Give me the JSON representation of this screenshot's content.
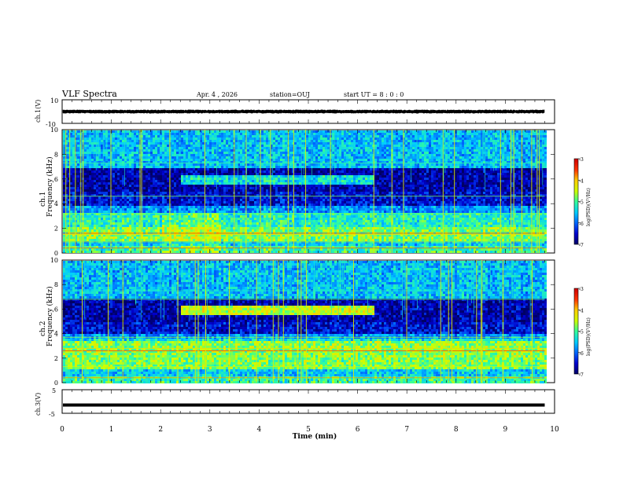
{
  "header": {
    "title": "VLF Spectra",
    "date": "Apr. 4 , 2026",
    "station": "station=OUJ",
    "start": "start UT =  8 : 0 : 0"
  },
  "colors": {
    "background": "#ffffff",
    "axis": "#000000",
    "colormap": [
      "#000066",
      "#0000cc",
      "#0066ff",
      "#00ccff",
      "#33ff99",
      "#ccff00",
      "#ffcc00",
      "#ff3300",
      "#cc0000"
    ]
  },
  "chart_data": [
    {
      "type": "line",
      "name": "ch1-waveform",
      "ylabel": "ch.1(V)",
      "ylim": [
        -10,
        10
      ],
      "yticks": [
        "10",
        "-10"
      ],
      "xlim": [
        0,
        10
      ],
      "baseline": 0,
      "envelope_v": 1.5,
      "end_min": 9.8
    },
    {
      "type": "heatmap",
      "name": "ch1-spectrogram",
      "ylabel": "ch.1\nFrequency (kHz)",
      "ylim": [
        0,
        10
      ],
      "yticks": [
        0,
        2,
        4,
        6,
        8,
        10
      ],
      "xlim": [
        0,
        10
      ],
      "end_min": 9.8,
      "colorbar": {
        "label": "log(PSD)(V²/Hz)",
        "range": [
          -7,
          -3
        ],
        "ticks": [
          "-3",
          "-4",
          "-5",
          "-6",
          "-7"
        ]
      }
    },
    {
      "type": "heatmap",
      "name": "ch2-spectrogram",
      "ylabel": "ch.2\nFrequency (kHz)",
      "ylim": [
        0,
        10
      ],
      "yticks": [
        0,
        2,
        4,
        6,
        8,
        10
      ],
      "xlim": [
        0,
        10
      ],
      "end_min": 9.8,
      "colorbar": {
        "label": "log(PSD)(V²/Hz)",
        "range": [
          -7,
          -3
        ],
        "ticks": [
          "-3",
          "-4",
          "-5",
          "-6",
          "-7"
        ]
      }
    },
    {
      "type": "line",
      "name": "ch3-waveform",
      "ylabel": "ch.3(V)",
      "ylim": [
        -5,
        5
      ],
      "yticks": [
        "5",
        "-5"
      ],
      "xlim": [
        0,
        10
      ],
      "baseline": -1.5,
      "end_min": 9.8
    }
  ],
  "xaxis": {
    "label": "Time (min)",
    "ticks": [
      "0",
      "1",
      "2",
      "3",
      "4",
      "5",
      "6",
      "7",
      "8",
      "9",
      "10"
    ]
  }
}
